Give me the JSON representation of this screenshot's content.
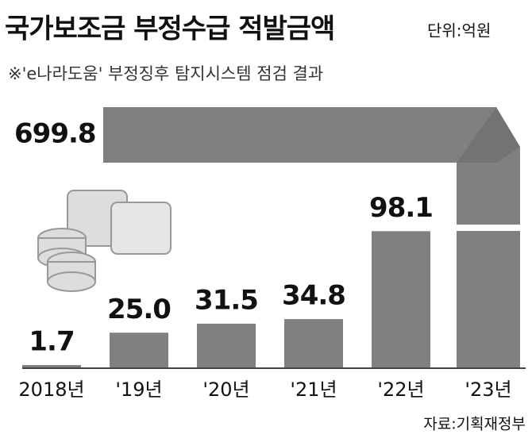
{
  "chart_data": {
    "type": "bar",
    "title": "국가보조금 부정수급 적발금액",
    "unit": "단위:억원",
    "subtitle": "※'e나라도움' 부정징후 탐지시스템 점검 결과",
    "source": "자료:기획재정부",
    "categories": [
      "2018년",
      "'19년",
      "'20년",
      "'21년",
      "'22년",
      "'23년"
    ],
    "values": [
      1.7,
      25.0,
      31.5,
      34.8,
      98.1,
      699.8
    ],
    "value_labels": [
      "1.7",
      "25.0",
      "31.5",
      "34.8",
      "98.1",
      "699.8"
    ],
    "color": "#808080"
  }
}
